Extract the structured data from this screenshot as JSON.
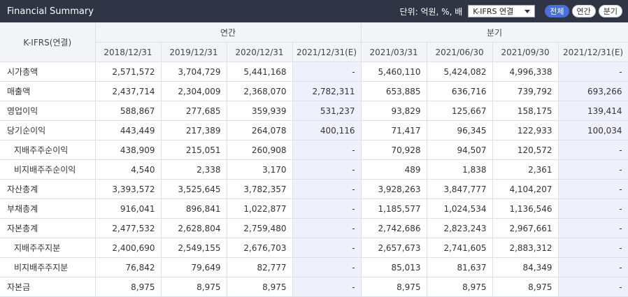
{
  "header": {
    "title": "Financial Summary",
    "unit_label": "단위: 억원, %, 배",
    "select_value": "K-IFRS 연결",
    "buttons": {
      "all": "전체",
      "annual": "연간",
      "quarter": "분기"
    }
  },
  "table": {
    "row_head_label": "K-IFRS(연결)",
    "group_annual": "연간",
    "group_quarter": "분기",
    "columns": [
      "2018/12/31",
      "2019/12/31",
      "2020/12/31",
      "2021/12/31(E)",
      "2021/03/31",
      "2021/06/30",
      "2021/09/30",
      "2021/12/31(E)"
    ],
    "rows": [
      {
        "label": "시가총액",
        "values": [
          "2,571,572",
          "3,704,729",
          "5,441,168",
          "-",
          "5,460,110",
          "5,424,082",
          "4,996,338",
          "-"
        ]
      },
      {
        "label": "매출액",
        "values": [
          "2,437,714",
          "2,304,009",
          "2,368,070",
          "2,782,311",
          "653,885",
          "636,716",
          "739,792",
          "693,266"
        ]
      },
      {
        "label": "영업이익",
        "values": [
          "588,867",
          "277,685",
          "359,939",
          "531,237",
          "93,829",
          "125,667",
          "158,175",
          "139,414"
        ]
      },
      {
        "label": "당기순이익",
        "values": [
          "443,449",
          "217,389",
          "264,078",
          "400,116",
          "71,417",
          "96,345",
          "122,933",
          "100,034"
        ]
      },
      {
        "label": "지배주주순이익",
        "values": [
          "438,909",
          "215,051",
          "260,908",
          "-",
          "70,928",
          "94,507",
          "120,572",
          "-"
        ]
      },
      {
        "label": "비지배주주순이익",
        "values": [
          "4,540",
          "2,338",
          "3,170",
          "-",
          "489",
          "1,838",
          "2,361",
          "-"
        ]
      },
      {
        "label": "자산총계",
        "values": [
          "3,393,572",
          "3,525,645",
          "3,782,357",
          "-",
          "3,928,263",
          "3,847,777",
          "4,104,207",
          "-"
        ]
      },
      {
        "label": "부채총계",
        "values": [
          "916,041",
          "896,841",
          "1,022,877",
          "-",
          "1,185,577",
          "1,024,534",
          "1,136,546",
          "-"
        ]
      },
      {
        "label": "자본총계",
        "values": [
          "2,477,532",
          "2,628,804",
          "2,759,480",
          "-",
          "2,742,686",
          "2,823,243",
          "2,967,661",
          "-"
        ]
      },
      {
        "label": "지배주주지분",
        "values": [
          "2,400,690",
          "2,549,155",
          "2,676,703",
          "-",
          "2,657,673",
          "2,741,605",
          "2,883,312",
          "-"
        ]
      },
      {
        "label": "비지배주주지분",
        "values": [
          "76,842",
          "79,649",
          "82,777",
          "-",
          "85,013",
          "81,637",
          "84,349",
          "-"
        ]
      },
      {
        "label": "자본금",
        "values": [
          "8,975",
          "8,975",
          "8,975",
          "-",
          "8,975",
          "8,975",
          "8,975",
          "-"
        ]
      }
    ]
  }
}
